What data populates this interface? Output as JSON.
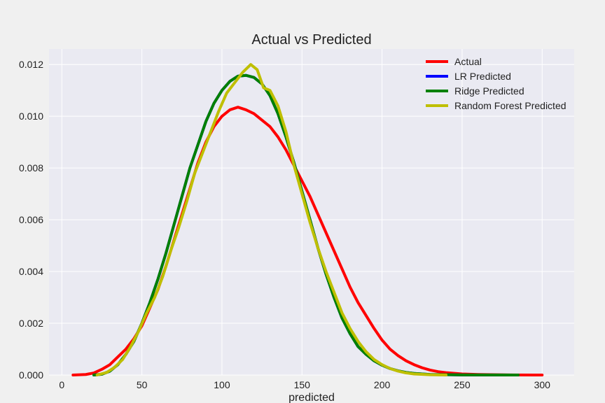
{
  "chart_data": {
    "type": "line",
    "title": "Actual vs Predicted",
    "xlabel": "predicted",
    "ylabel": "",
    "xlim": [
      -8,
      320
    ],
    "ylim": [
      0,
      0.0126
    ],
    "xticks": [
      0,
      50,
      100,
      150,
      200,
      250,
      300
    ],
    "yticks": [
      0.0,
      0.002,
      0.004,
      0.006,
      0.008,
      0.01,
      0.012
    ],
    "ytick_labels": [
      "0.000",
      "0.002",
      "0.004",
      "0.006",
      "0.008",
      "0.010",
      "0.012"
    ],
    "grid": true,
    "legend_position": "top-right",
    "series": [
      {
        "name": "Actual",
        "color": "#ff0000",
        "points": [
          [
            7,
            0
          ],
          [
            15,
            2e-05
          ],
          [
            20,
            8e-05
          ],
          [
            25,
            0.00022
          ],
          [
            30,
            0.0004
          ],
          [
            35,
            0.0007
          ],
          [
            40,
            0.001
          ],
          [
            45,
            0.0014
          ],
          [
            50,
            0.0019
          ],
          [
            55,
            0.0026
          ],
          [
            60,
            0.0033
          ],
          [
            65,
            0.0042
          ],
          [
            70,
            0.0052
          ],
          [
            75,
            0.0062
          ],
          [
            80,
            0.0072
          ],
          [
            85,
            0.0082
          ],
          [
            90,
            0.009
          ],
          [
            95,
            0.0096
          ],
          [
            100,
            0.01
          ],
          [
            105,
            0.01025
          ],
          [
            110,
            0.01035
          ],
          [
            115,
            0.01025
          ],
          [
            120,
            0.0101
          ],
          [
            125,
            0.00985
          ],
          [
            130,
            0.0096
          ],
          [
            135,
            0.0092
          ],
          [
            140,
            0.0087
          ],
          [
            145,
            0.0081
          ],
          [
            150,
            0.0075
          ],
          [
            155,
            0.0069
          ],
          [
            160,
            0.0062
          ],
          [
            165,
            0.0055
          ],
          [
            170,
            0.0048
          ],
          [
            175,
            0.0041
          ],
          [
            180,
            0.0034
          ],
          [
            185,
            0.0028
          ],
          [
            190,
            0.0023
          ],
          [
            195,
            0.0018
          ],
          [
            200,
            0.00135
          ],
          [
            205,
            0.001
          ],
          [
            210,
            0.00075
          ],
          [
            215,
            0.00055
          ],
          [
            220,
            0.0004
          ],
          [
            225,
            0.00028
          ],
          [
            230,
            0.00019
          ],
          [
            235,
            0.00013
          ],
          [
            240,
            9e-05
          ],
          [
            250,
            4e-05
          ],
          [
            260,
            2e-05
          ],
          [
            280,
            5e-06
          ],
          [
            300,
            0
          ]
        ]
      },
      {
        "name": "LR Predicted",
        "color": "#0000ff",
        "points": [
          [
            20,
            0
          ],
          [
            25,
            3e-05
          ],
          [
            30,
            0.00015
          ],
          [
            35,
            0.0004
          ],
          [
            40,
            0.0008
          ],
          [
            45,
            0.0013
          ],
          [
            50,
            0.002
          ],
          [
            55,
            0.0028
          ],
          [
            60,
            0.0037
          ],
          [
            65,
            0.0047
          ],
          [
            70,
            0.0058
          ],
          [
            75,
            0.0069
          ],
          [
            80,
            0.008
          ],
          [
            85,
            0.0089
          ],
          [
            90,
            0.0098
          ],
          [
            95,
            0.0105
          ],
          [
            100,
            0.011
          ],
          [
            105,
            0.01135
          ],
          [
            110,
            0.01155
          ],
          [
            115,
            0.01158
          ],
          [
            120,
            0.0115
          ],
          [
            125,
            0.01125
          ],
          [
            130,
            0.0108
          ],
          [
            135,
            0.0101
          ],
          [
            140,
            0.0092
          ],
          [
            145,
            0.0082
          ],
          [
            150,
            0.0071
          ],
          [
            155,
            0.006
          ],
          [
            160,
            0.0049
          ],
          [
            165,
            0.0039
          ],
          [
            170,
            0.003
          ],
          [
            175,
            0.0022
          ],
          [
            180,
            0.0016
          ],
          [
            185,
            0.0011
          ],
          [
            190,
            0.0008
          ],
          [
            195,
            0.00055
          ],
          [
            200,
            0.00038
          ],
          [
            205,
            0.00025
          ],
          [
            210,
            0.00016
          ],
          [
            215,
            0.0001
          ],
          [
            220,
            6e-05
          ],
          [
            230,
            2e-05
          ],
          [
            250,
            5e-06
          ],
          [
            285,
            0
          ]
        ]
      },
      {
        "name": "Ridge Predicted",
        "color": "#008000",
        "points": [
          [
            20,
            0
          ],
          [
            25,
            3e-05
          ],
          [
            30,
            0.00015
          ],
          [
            35,
            0.0004
          ],
          [
            40,
            0.0008
          ],
          [
            45,
            0.0013
          ],
          [
            50,
            0.002
          ],
          [
            55,
            0.0028
          ],
          [
            60,
            0.0037
          ],
          [
            65,
            0.0047
          ],
          [
            70,
            0.0058
          ],
          [
            75,
            0.0069
          ],
          [
            80,
            0.008
          ],
          [
            85,
            0.0089
          ],
          [
            90,
            0.0098
          ],
          [
            95,
            0.0105
          ],
          [
            100,
            0.011
          ],
          [
            105,
            0.01135
          ],
          [
            110,
            0.01155
          ],
          [
            115,
            0.01158
          ],
          [
            120,
            0.0115
          ],
          [
            125,
            0.01125
          ],
          [
            130,
            0.0108
          ],
          [
            135,
            0.0101
          ],
          [
            140,
            0.0092
          ],
          [
            145,
            0.0082
          ],
          [
            150,
            0.0071
          ],
          [
            155,
            0.006
          ],
          [
            160,
            0.0049
          ],
          [
            165,
            0.0039
          ],
          [
            170,
            0.003
          ],
          [
            175,
            0.0022
          ],
          [
            180,
            0.0016
          ],
          [
            185,
            0.0011
          ],
          [
            190,
            0.0008
          ],
          [
            195,
            0.00055
          ],
          [
            200,
            0.00038
          ],
          [
            205,
            0.00025
          ],
          [
            210,
            0.00016
          ],
          [
            215,
            0.0001
          ],
          [
            220,
            6e-05
          ],
          [
            230,
            2e-05
          ],
          [
            250,
            5e-06
          ],
          [
            285,
            0
          ]
        ]
      },
      {
        "name": "Random Forest Predicted",
        "color": "#bfbf00",
        "points": [
          [
            22,
            0
          ],
          [
            28,
            0.0001
          ],
          [
            33,
            0.0003
          ],
          [
            38,
            0.0006
          ],
          [
            43,
            0.0011
          ],
          [
            48,
            0.0017
          ],
          [
            53,
            0.0024
          ],
          [
            58,
            0.003
          ],
          [
            63,
            0.0038
          ],
          [
            68,
            0.0048
          ],
          [
            73,
            0.0057
          ],
          [
            78,
            0.0067
          ],
          [
            83,
            0.0078
          ],
          [
            88,
            0.0086
          ],
          [
            93,
            0.0094
          ],
          [
            98,
            0.0102
          ],
          [
            103,
            0.0109
          ],
          [
            108,
            0.0113
          ],
          [
            113,
            0.0117
          ],
          [
            118,
            0.012
          ],
          [
            122,
            0.0118
          ],
          [
            126,
            0.0111
          ],
          [
            130,
            0.011
          ],
          [
            135,
            0.0104
          ],
          [
            140,
            0.0094
          ],
          [
            145,
            0.0081
          ],
          [
            150,
            0.007
          ],
          [
            155,
            0.0059
          ],
          [
            160,
            0.0049
          ],
          [
            165,
            0.004
          ],
          [
            170,
            0.0032
          ],
          [
            175,
            0.0024
          ],
          [
            180,
            0.0018
          ],
          [
            185,
            0.0013
          ],
          [
            190,
            0.0009
          ],
          [
            195,
            0.0006
          ],
          [
            200,
            0.0004
          ],
          [
            205,
            0.00025
          ],
          [
            210,
            0.00015
          ],
          [
            215,
            8e-05
          ],
          [
            220,
            4e-05
          ],
          [
            230,
            1e-05
          ],
          [
            240,
            0
          ]
        ]
      }
    ]
  }
}
